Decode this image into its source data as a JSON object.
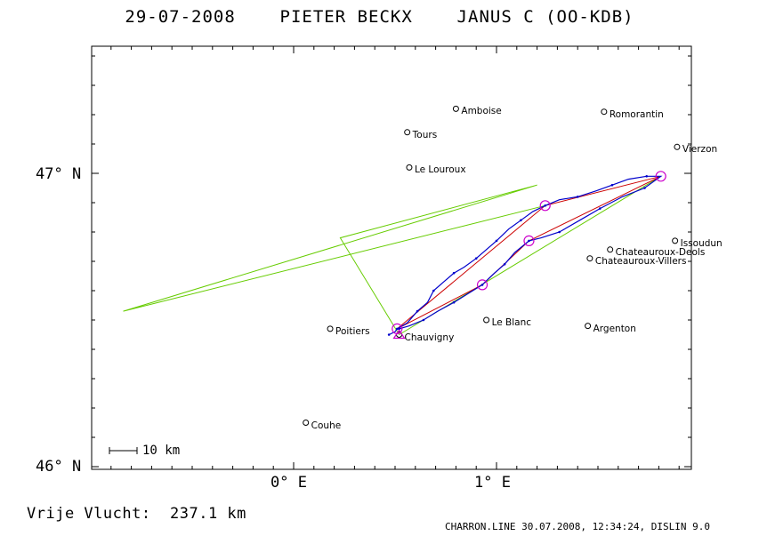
{
  "title": "29-07-2008    PIETER BECKX    JANUS C (OO-KDB)",
  "axes": {
    "lat_labels": [
      {
        "text": "47° N",
        "lat": 47.0
      },
      {
        "text": "46° N",
        "lat": 46.0
      }
    ],
    "lon_labels": [
      {
        "text": "0° E",
        "lon": 0.0
      },
      {
        "text": "1° E",
        "lon": 1.0
      }
    ],
    "lon_range": [
      -0.97,
      1.95
    ],
    "lat_range": [
      46.0,
      47.43
    ]
  },
  "scale_bar": {
    "label": "10 km"
  },
  "distance": "Vrije Vlucht:  237.1 km",
  "footer": "CHARRON.LINE 30.07.2008, 12:34:24, DISLIN 9.0",
  "colors": {
    "track": "#0000cc",
    "turnpoint_circle": "#cc00cc",
    "optimized_route": "#cc0000",
    "task_lines": "#66cc00"
  },
  "cities": [
    {
      "name": "Amboise",
      "lon": 0.8,
      "lat": 47.22
    },
    {
      "name": "Romorantin",
      "lon": 1.53,
      "lat": 47.21
    },
    {
      "name": "Tours",
      "lon": 0.56,
      "lat": 47.14
    },
    {
      "name": "Vierzon",
      "lon": 1.89,
      "lat": 47.09
    },
    {
      "name": "Le Louroux",
      "lon": 0.57,
      "lat": 47.02
    },
    {
      "name": "Issoudun",
      "lon": 1.88,
      "lat": 46.77
    },
    {
      "name": "Chateauroux-Deols",
      "lon": 1.56,
      "lat": 46.74
    },
    {
      "name": "Chateauroux-Villers",
      "lon": 1.46,
      "lat": 46.71
    },
    {
      "name": "Le Blanc",
      "lon": 0.95,
      "lat": 46.5
    },
    {
      "name": "Argenton",
      "lon": 1.45,
      "lat": 46.48
    },
    {
      "name": "Poitiers",
      "lon": 0.18,
      "lat": 46.47
    },
    {
      "name": "Chauvigny",
      "lon": 0.52,
      "lat": 46.45
    },
    {
      "name": "Couhe",
      "lon": 0.06,
      "lat": 46.15
    }
  ],
  "turnpoints": [
    {
      "lon": 0.51,
      "lat": 46.47
    },
    {
      "lon": 1.24,
      "lat": 46.89
    },
    {
      "lon": 1.81,
      "lat": 46.99
    },
    {
      "lon": 1.16,
      "lat": 46.77
    },
    {
      "lon": 0.93,
      "lat": 46.62
    }
  ],
  "optimized_route": [
    {
      "lon": 0.51,
      "lat": 46.47
    },
    {
      "lon": 1.24,
      "lat": 46.89
    },
    {
      "lon": 1.81,
      "lat": 46.99
    },
    {
      "lon": 1.16,
      "lat": 46.77
    },
    {
      "lon": 0.93,
      "lat": 46.62
    },
    {
      "lon": 0.51,
      "lat": 46.47
    }
  ],
  "task_lines": [
    [
      {
        "lon": 0.52,
        "lat": 46.45
      },
      {
        "lon": 1.81,
        "lat": 46.99
      }
    ],
    [
      {
        "lon": 0.52,
        "lat": 46.45
      },
      {
        "lon": 0.23,
        "lat": 46.78
      },
      {
        "lon": 1.2,
        "lat": 46.96
      },
      {
        "lon": -0.84,
        "lat": 46.53
      },
      {
        "lon": 1.24,
        "lat": 46.89
      }
    ]
  ],
  "track": [
    {
      "lon": 0.47,
      "lat": 46.45
    },
    {
      "lon": 0.5,
      "lat": 46.46
    },
    {
      "lon": 0.51,
      "lat": 46.47
    },
    {
      "lon": 0.56,
      "lat": 46.49
    },
    {
      "lon": 0.61,
      "lat": 46.53
    },
    {
      "lon": 0.66,
      "lat": 46.56
    },
    {
      "lon": 0.69,
      "lat": 46.6
    },
    {
      "lon": 0.74,
      "lat": 46.63
    },
    {
      "lon": 0.79,
      "lat": 46.66
    },
    {
      "lon": 0.84,
      "lat": 46.68
    },
    {
      "lon": 0.9,
      "lat": 46.71
    },
    {
      "lon": 0.95,
      "lat": 46.74
    },
    {
      "lon": 1.0,
      "lat": 46.77
    },
    {
      "lon": 1.06,
      "lat": 46.81
    },
    {
      "lon": 1.12,
      "lat": 46.84
    },
    {
      "lon": 1.18,
      "lat": 46.87
    },
    {
      "lon": 1.24,
      "lat": 46.89
    },
    {
      "lon": 1.31,
      "lat": 46.91
    },
    {
      "lon": 1.4,
      "lat": 46.92
    },
    {
      "lon": 1.49,
      "lat": 46.94
    },
    {
      "lon": 1.57,
      "lat": 46.96
    },
    {
      "lon": 1.65,
      "lat": 46.98
    },
    {
      "lon": 1.74,
      "lat": 46.99
    },
    {
      "lon": 1.81,
      "lat": 46.99
    },
    {
      "lon": 1.73,
      "lat": 46.95
    },
    {
      "lon": 1.62,
      "lat": 46.92
    },
    {
      "lon": 1.51,
      "lat": 46.88
    },
    {
      "lon": 1.41,
      "lat": 46.84
    },
    {
      "lon": 1.31,
      "lat": 46.8
    },
    {
      "lon": 1.22,
      "lat": 46.78
    },
    {
      "lon": 1.16,
      "lat": 46.77
    },
    {
      "lon": 1.09,
      "lat": 46.73
    },
    {
      "lon": 1.04,
      "lat": 46.69
    },
    {
      "lon": 0.99,
      "lat": 46.66
    },
    {
      "lon": 0.93,
      "lat": 46.62
    },
    {
      "lon": 0.86,
      "lat": 46.59
    },
    {
      "lon": 0.79,
      "lat": 46.56
    },
    {
      "lon": 0.71,
      "lat": 46.53
    },
    {
      "lon": 0.64,
      "lat": 46.5
    },
    {
      "lon": 0.57,
      "lat": 46.48
    },
    {
      "lon": 0.52,
      "lat": 46.47
    }
  ],
  "start_marker": {
    "lon": 0.52,
    "lat": 46.45
  }
}
